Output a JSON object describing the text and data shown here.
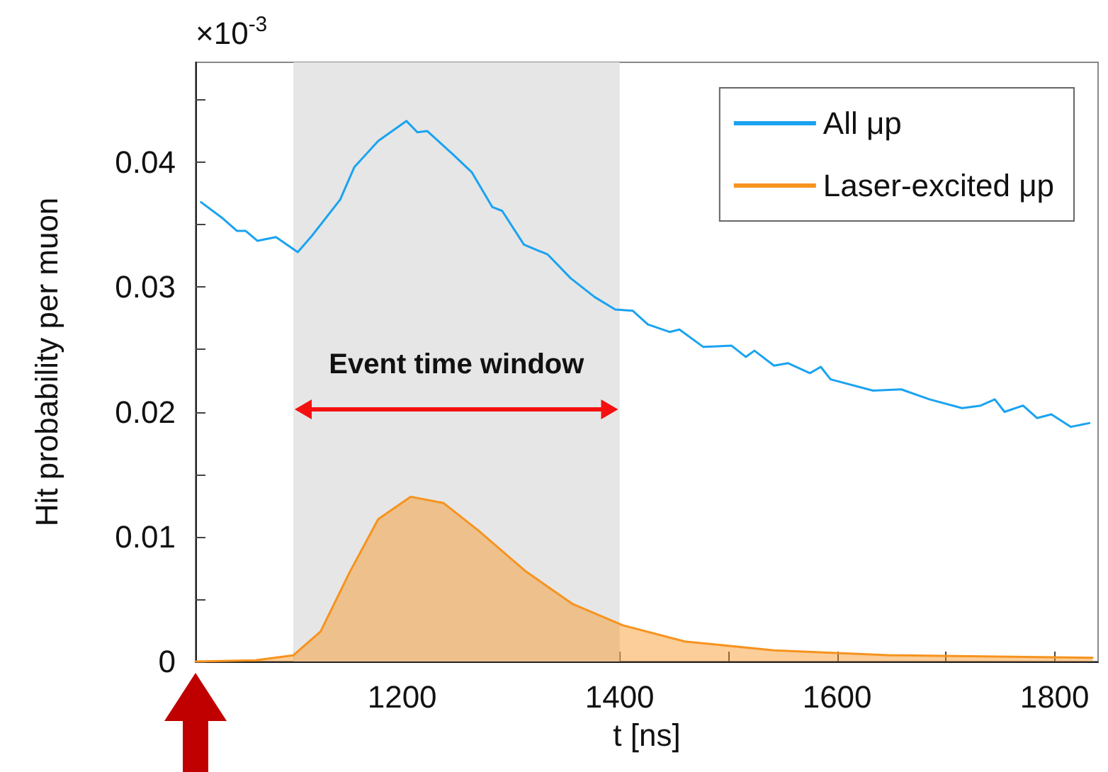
{
  "chart_data": {
    "type": "line",
    "xlabel": "t [ns]",
    "ylabel": "Hit probability per muon",
    "xlim": [
      1010,
      1840
    ],
    "ylim": [
      0,
      0.048
    ],
    "xticks": [
      {
        "value": 1100,
        "label": null
      },
      1200,
      {
        "value": 1300,
        "label": null
      },
      1400,
      {
        "value": 1500,
        "label": null
      },
      1600,
      {
        "value": 1700,
        "label": null
      },
      1800
    ],
    "yticks": [
      0,
      {
        "value": 0.005,
        "label": null
      },
      0.01,
      {
        "value": 0.015,
        "label": null
      },
      0.02,
      {
        "value": 0.025,
        "label": null
      },
      0.03,
      {
        "value": 0.035,
        "label": null
      },
      0.04,
      {
        "value": 0.045,
        "label": null
      }
    ],
    "grid": false,
    "legend": "top right",
    "bands": [
      {
        "axis": "x",
        "from": 1100,
        "to": 1400,
        "color": "#e6e6e6",
        "label": "Event time window"
      }
    ],
    "annotations": [
      "×10$^{-3}$"
    ],
    "series": [
      {
        "name": "All μp",
        "type": "line",
        "color": "#1aa3f0",
        "x": [
          1015,
          1035,
          1048,
          1056,
          1067,
          1084,
          1104,
          1117,
          1143,
          1156,
          1178,
          1204,
          1214,
          1223,
          1247,
          1264,
          1283,
          1292,
          1312,
          1334,
          1355,
          1377,
          1396,
          1412,
          1426,
          1446,
          1455,
          1477,
          1503,
          1516,
          1524,
          1542,
          1555,
          1575,
          1585,
          1594,
          1633,
          1659,
          1685,
          1715,
          1732,
          1745,
          1754,
          1771,
          1784,
          1797,
          1815,
          1832
        ],
        "values": [
          0.0368,
          0.0355,
          0.0345,
          0.0345,
          0.0337,
          0.034,
          0.0328,
          0.0341,
          0.037,
          0.0396,
          0.0417,
          0.0433,
          0.0424,
          0.0425,
          0.0406,
          0.0392,
          0.0364,
          0.0361,
          0.0334,
          0.0326,
          0.0307,
          0.0292,
          0.0282,
          0.0281,
          0.027,
          0.0264,
          0.0266,
          0.0252,
          0.0253,
          0.0244,
          0.0249,
          0.0237,
          0.0239,
          0.0231,
          0.0236,
          0.0226,
          0.0217,
          0.0218,
          0.021,
          0.0203,
          0.0205,
          0.021,
          0.02,
          0.0205,
          0.0195,
          0.0198,
          0.0188,
          0.0191
        ]
      },
      {
        "name": "Laser-excited μp",
        "type": "area",
        "color": "#f7931e",
        "x": [
          1010,
          1065,
          1100,
          1125,
          1152,
          1178,
          1208,
          1238,
          1270,
          1314,
          1357,
          1403,
          1460,
          1542,
          1650,
          1835
        ],
        "values": [
          0,
          0.0001,
          0.0005,
          0.0024,
          0.0072,
          0.0114,
          0.0132,
          0.0127,
          0.0105,
          0.0072,
          0.0046,
          0.0029,
          0.0016,
          0.0009,
          0.0005,
          0.0003
        ]
      }
    ]
  }
}
